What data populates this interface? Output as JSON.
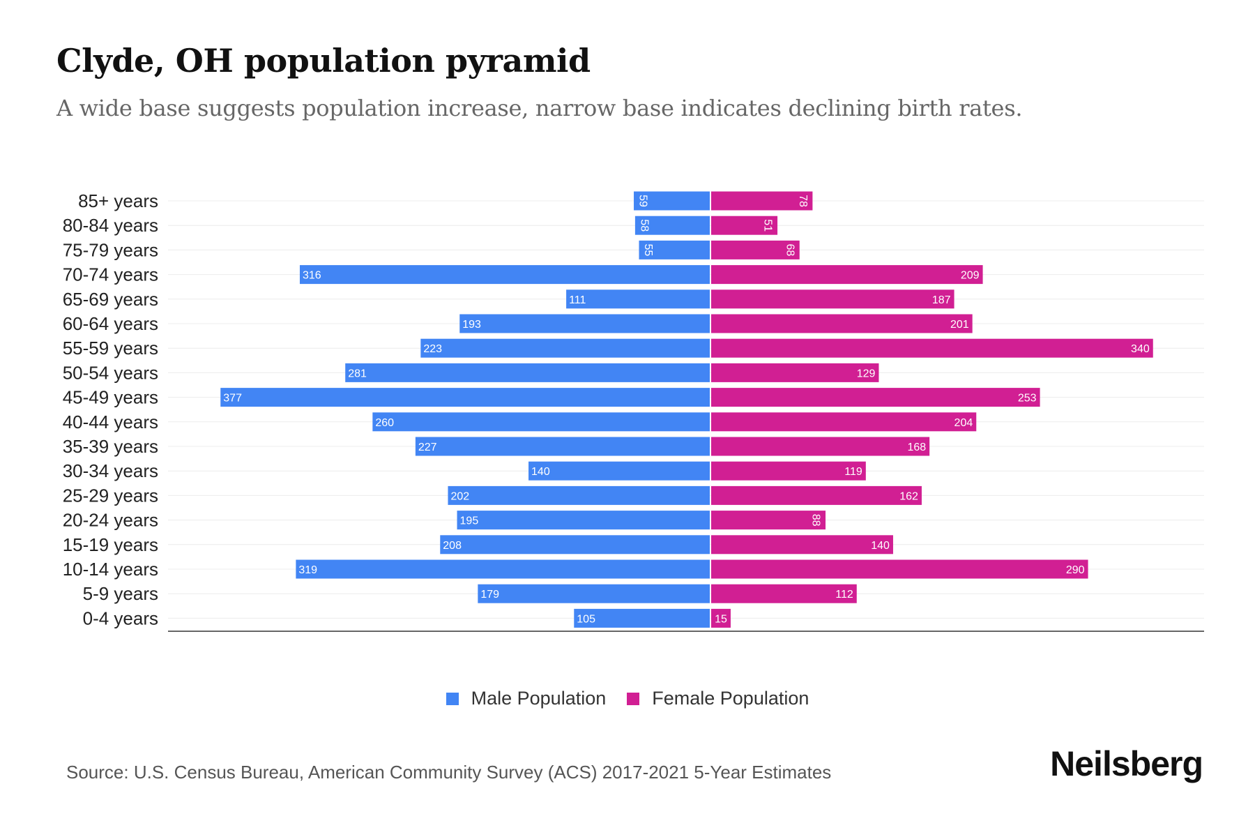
{
  "title": "Clyde, OH population pyramid",
  "subtitle": "A wide base suggests population increase, narrow base indicates declining birth rates.",
  "source": "Source: U.S. Census Bureau, American Community Survey (ACS) 2017-2021 5-Year Estimates",
  "logo": "Neilsberg",
  "colors": {
    "male": "#4285f4",
    "female": "#d11f93"
  },
  "chart_data": {
    "type": "bar",
    "orientation": "horizontal-pyramid",
    "categories": [
      "85+ years",
      "80-84 years",
      "75-79 years",
      "70-74 years",
      "65-69 years",
      "60-64 years",
      "55-59 years",
      "50-54 years",
      "45-49 years",
      "40-44 years",
      "35-39 years",
      "30-34 years",
      "25-29 years",
      "20-24 years",
      "15-19 years",
      "10-14 years",
      "5-9 years",
      "0-4 years"
    ],
    "series": [
      {
        "name": "Male Population",
        "values": [
          59,
          58,
          55,
          316,
          111,
          193,
          223,
          281,
          377,
          260,
          227,
          140,
          202,
          195,
          208,
          319,
          179,
          105
        ]
      },
      {
        "name": "Female Population",
        "values": [
          78,
          51,
          68,
          209,
          187,
          201,
          340,
          129,
          253,
          204,
          168,
          119,
          162,
          88,
          140,
          290,
          112,
          15
        ]
      }
    ],
    "legend": "bottom-center",
    "grid": true
  }
}
